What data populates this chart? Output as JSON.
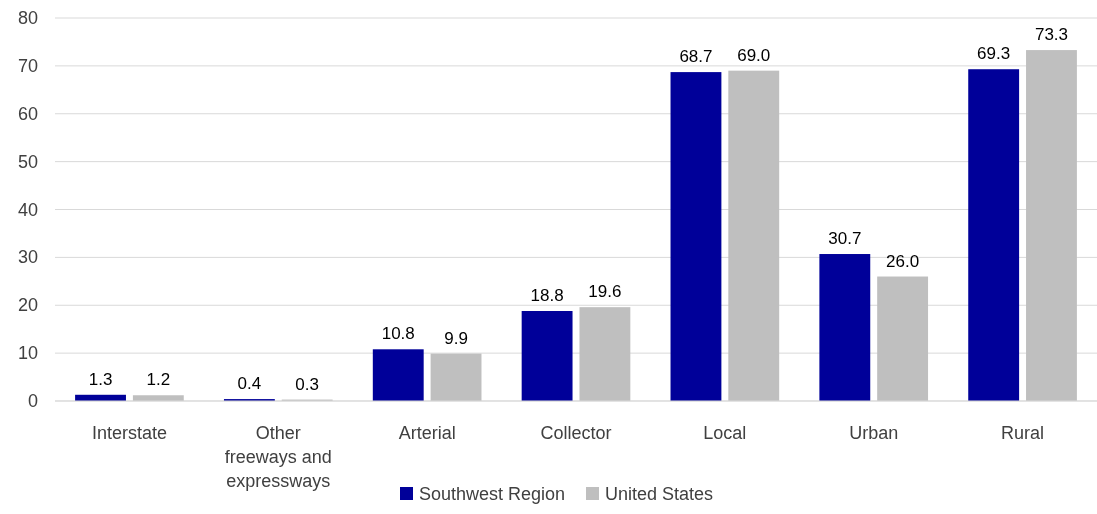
{
  "chart_data": {
    "type": "bar",
    "categories": [
      "Interstate",
      "Other freeways and expressways",
      "Arterial",
      "Collector",
      "Local",
      "Urban",
      "Rural"
    ],
    "series": [
      {
        "name": "Southwest Region",
        "color": "#000099",
        "values": [
          1.3,
          0.4,
          10.8,
          18.8,
          68.7,
          30.7,
          69.3
        ],
        "value_labels": [
          "1.3",
          "0.4",
          "10.8",
          "18.8",
          "68.7",
          "30.7",
          "69.3"
        ]
      },
      {
        "name": "United States",
        "color": "#bfbfbf",
        "values": [
          1.2,
          0.3,
          9.9,
          19.6,
          69.0,
          26.0,
          73.3
        ],
        "value_labels": [
          "1.2",
          "0.3",
          "9.9",
          "19.6",
          "69.0",
          "26.0",
          "73.3"
        ]
      }
    ],
    "ylim": [
      0,
      80
    ],
    "yticks": [
      0,
      10,
      20,
      30,
      40,
      50,
      60,
      70,
      80
    ],
    "grid": "y",
    "legend": "bottom"
  }
}
